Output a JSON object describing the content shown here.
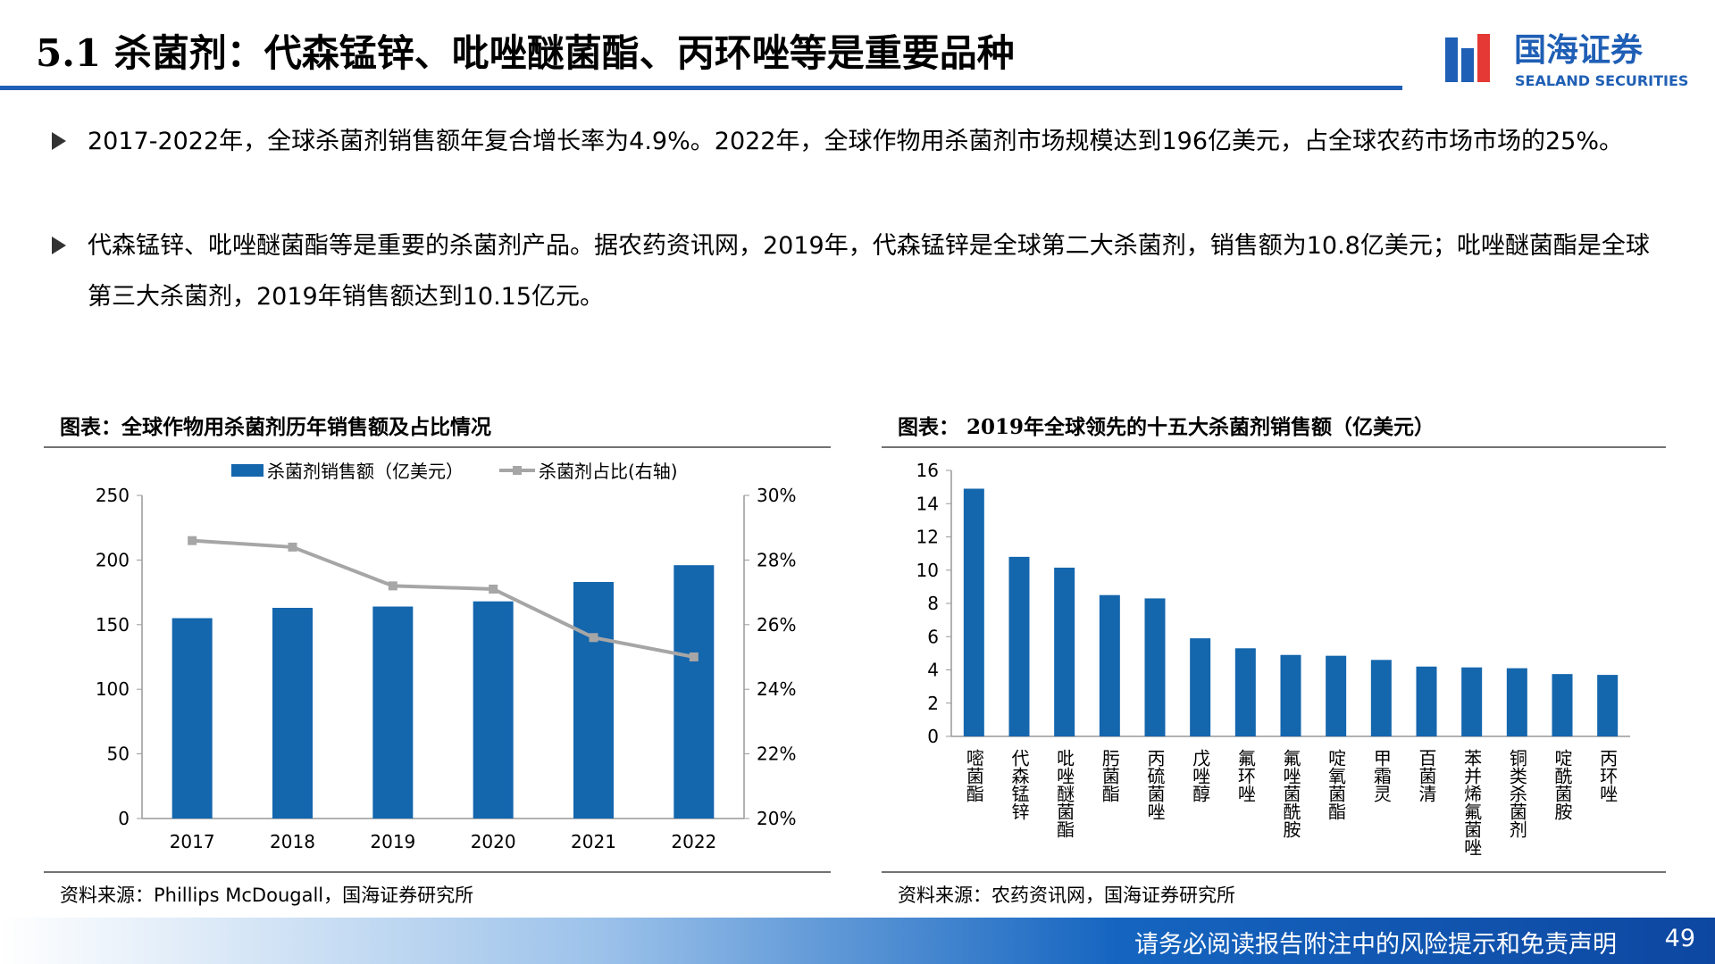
{
  "header": {
    "title": "5.1 杀菌剂：代森锰锌、吡唑醚菌酯、丙环唑等是重要品种",
    "logo_cn": "国海证券",
    "logo_en": "SEALAND SECURITIES"
  },
  "bullets": [
    "2017-2022年，全球杀菌剂销售额年复合增长率为4.9%。2022年，全球作物用杀菌剂市场规模达到196亿美元，占全球农药市场市场的25%。",
    "代森锰锌、吡唑醚菌酯等是重要的杀菌剂产品。据农药资讯网，2019年，代森锰锌是全球第二大杀菌剂，销售额为10.8亿美元；吡唑醚菌酯是全球第三大杀菌剂，2019年销售额达到10.15亿元。"
  ],
  "footer": {
    "text": "请务必阅读报告附注中的风险提示和免责声明",
    "page": "49"
  },
  "chart_data": [
    {
      "type": "bar",
      "title": "图表：全球作物用杀菌剂历年销售额及占比情况",
      "source": "资料来源：Phillips McDougall，国海证券研究所",
      "categories": [
        "2017",
        "2018",
        "2019",
        "2020",
        "2021",
        "2022"
      ],
      "series": [
        {
          "name": "杀菌剂销售额（亿美元）",
          "color": "#1466ad",
          "values": [
            155,
            163,
            164,
            168,
            183,
            196
          ]
        },
        {
          "name": "杀菌剂占比(右轴)",
          "color": "#a6a6a6",
          "type": "line",
          "axis": "y2",
          "values": [
            28.6,
            28.4,
            27.2,
            27.1,
            25.6,
            25.0
          ]
        }
      ],
      "ylim": [
        0,
        250
      ],
      "yticks": [
        0,
        50,
        100,
        150,
        200,
        250
      ],
      "y2lim": [
        20,
        30
      ],
      "y2ticks": [
        {
          "value": 20,
          "label": "20%"
        },
        {
          "value": 22,
          "label": "22%"
        },
        {
          "value": 24,
          "label": "24%"
        },
        {
          "value": 26,
          "label": "26%"
        },
        {
          "value": 28,
          "label": "28%"
        },
        {
          "value": 30,
          "label": "30%"
        }
      ]
    },
    {
      "type": "bar",
      "title": "图表： 2019年全球领先的十五大杀菌剂销售额（亿美元）",
      "source": "资料来源：农药资讯网，国海证券研究所",
      "categories": [
        "嘧菌酯",
        "代森锰锌",
        "吡唑醚菌酯",
        "肟菌酯",
        "丙硫菌唑",
        "戊唑醇",
        "氟环唑",
        "氟唑菌酰胺",
        "啶氧菌酯",
        "甲霜灵",
        "百菌清",
        "苯并烯氟菌唑",
        "铜类杀菌剂",
        "啶酰菌胺",
        "丙环唑"
      ],
      "values": [
        14.9,
        10.8,
        10.15,
        8.5,
        8.3,
        5.9,
        5.3,
        4.9,
        4.85,
        4.6,
        4.2,
        4.15,
        4.1,
        3.75,
        3.7
      ],
      "color": "#1466ad",
      "ylim": [
        0,
        16
      ],
      "yticks": [
        0,
        2,
        4,
        6,
        8,
        10,
        12,
        14,
        16
      ]
    }
  ]
}
